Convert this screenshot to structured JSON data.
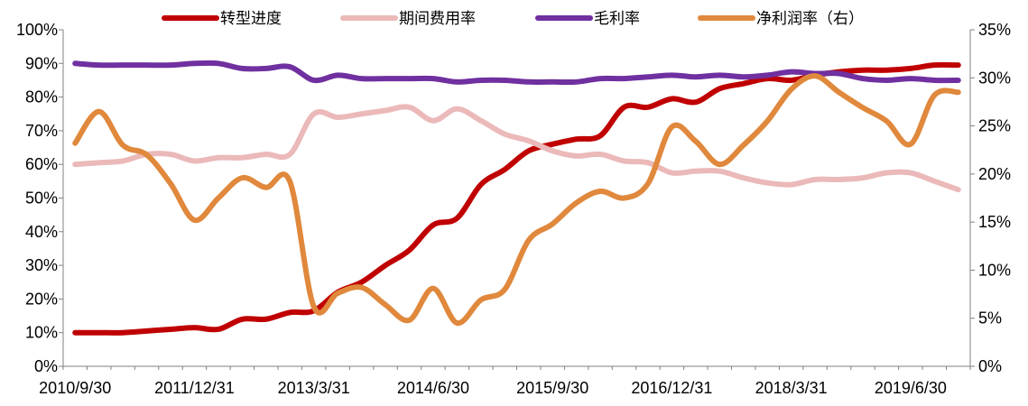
{
  "chart_data": {
    "type": "line",
    "legend_placement": "top",
    "y_left": {
      "ticks": [
        "0%",
        "10%",
        "20%",
        "30%",
        "40%",
        "50%",
        "60%",
        "70%",
        "80%",
        "90%",
        "100%"
      ],
      "ylim": [
        0,
        100
      ]
    },
    "y_right": {
      "ticks": [
        "0%",
        "5%",
        "10%",
        "15%",
        "20%",
        "25%",
        "30%",
        "35%"
      ],
      "ylim": [
        0,
        35
      ]
    },
    "x_tick_labels": [
      "2010/9/30",
      "2011/12/31",
      "2013/3/31",
      "2014/6/30",
      "2015/9/30",
      "2016/12/31",
      "2018/3/31",
      "2019/6/30"
    ],
    "x_tick_positions": [
      0,
      5,
      10,
      15,
      20,
      25,
      30,
      35
    ],
    "x_count": 38,
    "series": [
      {
        "name": "转型进度",
        "axis": "left",
        "color": "#C00000",
        "values": [
          10,
          10,
          10,
          10.5,
          11,
          11.5,
          11,
          14,
          14,
          16,
          16.5,
          22,
          25,
          30,
          34.5,
          42,
          44,
          54,
          58.5,
          64,
          66,
          67.5,
          68.5,
          77,
          77,
          79.5,
          78.5,
          82.5,
          84,
          85.5,
          85,
          86.5,
          87.5,
          88,
          88,
          88.5,
          89.5,
          89.5
        ]
      },
      {
        "name": "期间费用率",
        "axis": "left",
        "color": "#EBB9B9",
        "values": [
          60,
          60.5,
          61,
          63,
          63,
          61,
          62,
          62,
          63,
          63,
          75,
          74,
          75,
          76,
          77,
          73,
          76.5,
          73,
          69,
          67,
          64,
          62.5,
          63,
          61,
          60.5,
          57.5,
          58,
          58,
          56,
          54.5,
          54,
          55.5,
          55.5,
          56,
          57.5,
          57.5,
          55,
          52.5
        ]
      },
      {
        "name": "毛利率",
        "axis": "left",
        "color": "#7030A0",
        "values": [
          90,
          89.5,
          89.5,
          89.5,
          89.5,
          90,
          90,
          88.5,
          88.5,
          89,
          85,
          86.5,
          85.5,
          85.5,
          85.5,
          85.5,
          84.5,
          85,
          85,
          84.5,
          84.5,
          84.5,
          85.5,
          85.5,
          86,
          86.5,
          86,
          86.5,
          86,
          86.5,
          87.5,
          87,
          87,
          85.5,
          85,
          85.5,
          85,
          85
        ]
      },
      {
        "name": "净利润率（右）",
        "axis": "right",
        "color": "#E0883C",
        "values": [
          23.2,
          26.5,
          23,
          22,
          19,
          15.2,
          17.5,
          19.6,
          18.6,
          19.2,
          6.2,
          7.6,
          8.2,
          6.4,
          4.8,
          8.1,
          4.5,
          6.9,
          8,
          13.1,
          14.8,
          17,
          18.2,
          17.5,
          19,
          24.9,
          23.4,
          21,
          23,
          25.5,
          28.8,
          30.2,
          28.5,
          26.9,
          25.5,
          23.1,
          28.2,
          28.5
        ]
      }
    ]
  }
}
